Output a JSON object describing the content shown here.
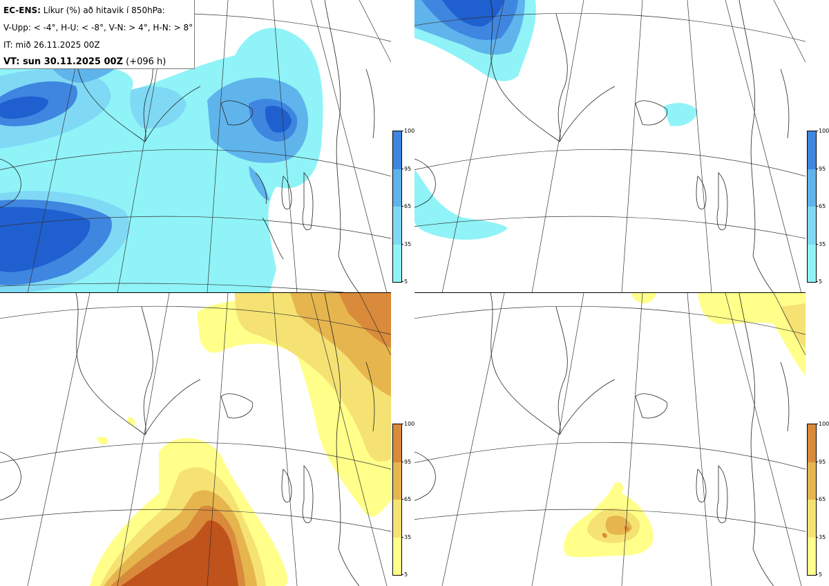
{
  "header": {
    "model": "EC-ENS:",
    "title": "Líkur (%) að hitavik í 850hPa:",
    "thresholds": "V-Upp: < -4°, H-U: < -8°, V-N: > 4°, H-N: > 8°",
    "init_time": "IT: mið 26.11.2025 00Z",
    "valid_label": "VT: sun 30.11.2025 00Z",
    "lead": "(+096 h)"
  },
  "colorbars": {
    "cold": {
      "ticks": [
        "100",
        "95",
        "65",
        "35",
        "5"
      ],
      "colors": [
        "#1f5fcf",
        "#3f86e0",
        "#5fb4ec",
        "#7fd9f5",
        "#8ff3f7"
      ]
    },
    "warm": {
      "ticks": [
        "100",
        "95",
        "65",
        "35",
        "5"
      ],
      "colors": [
        "#c0521c",
        "#d98a3a",
        "#e6b54e",
        "#f5e272",
        "#ffff8a"
      ]
    }
  },
  "panels": [
    {
      "id": "tl",
      "label": "V-Upp",
      "palette": "cold"
    },
    {
      "id": "tr",
      "label": "H-U",
      "palette": "cold"
    },
    {
      "id": "bl",
      "label": "V-N",
      "palette": "warm"
    },
    {
      "id": "br",
      "label": "H-N",
      "palette": "warm"
    }
  ]
}
